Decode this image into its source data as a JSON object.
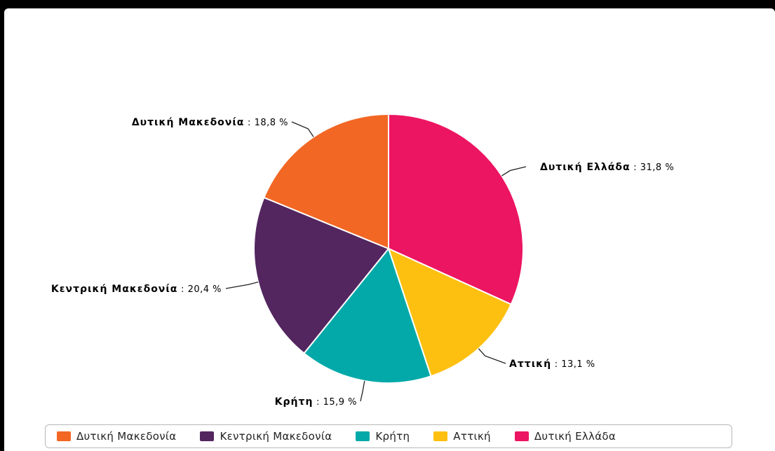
{
  "chart_data": {
    "type": "pie",
    "title": "",
    "slices": [
      {
        "label": "Δυτική Ελλάδα",
        "value": 31.8,
        "value_text": "31,8 %",
        "color": "#ec1561"
      },
      {
        "label": "Αττική",
        "value": 13.1,
        "value_text": "13,1 %",
        "color": "#fdc010"
      },
      {
        "label": "Κρήτη",
        "value": 15.9,
        "value_text": "15,9 %",
        "color": "#03a9a9"
      },
      {
        "label": "Κεντρική Μακεδονία",
        "value": 20.4,
        "value_text": "20,4 %",
        "color": "#532660"
      },
      {
        "label": "Δυτική Μακεδονία",
        "value": 18.8,
        "value_text": "18,8 %",
        "color": "#f26723"
      }
    ],
    "legend": {
      "position": "bottom",
      "items": [
        {
          "label": "Δυτική Μακεδονία",
          "color": "#f26723"
        },
        {
          "label": "Κεντρική Μακεδονία",
          "color": "#532660"
        },
        {
          "label": "Κρήτη",
          "color": "#03a9a9"
        },
        {
          "label": "Αττική",
          "color": "#fdc010"
        },
        {
          "label": "Δυτική Ελλάδα",
          "color": "#ec1561"
        }
      ]
    }
  }
}
